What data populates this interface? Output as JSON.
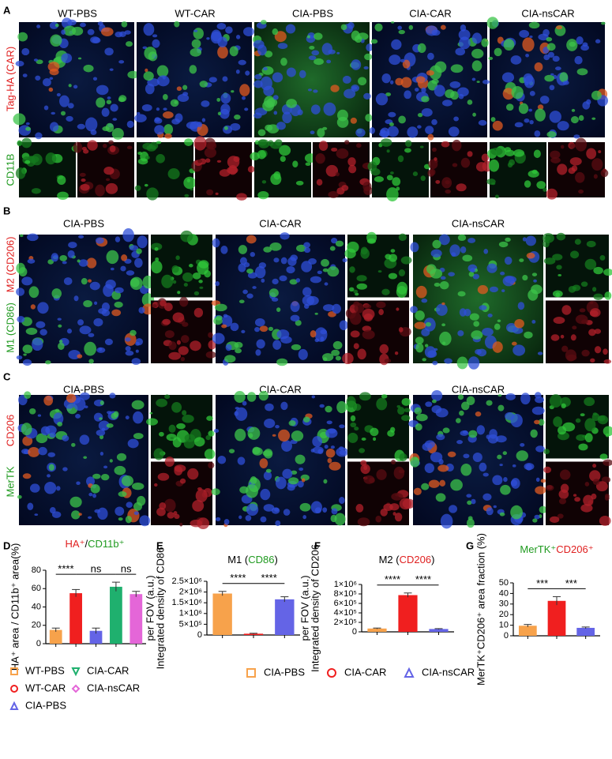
{
  "panels": [
    {
      "letter": "A",
      "columns": [
        "WT-PBS",
        "WT-CAR",
        "CIA-PBS",
        "CIA-CAR",
        "CIA-nsCAR"
      ],
      "channels": [
        {
          "text": "Tag-HA (CAR)",
          "color": "#e02020"
        },
        {
          "text": "CD11B",
          "color": "#1f9a1f"
        }
      ]
    },
    {
      "letter": "B",
      "columns": [
        "CIA-PBS",
        "CIA-CAR",
        "CIA-nsCAR"
      ],
      "channels": [
        {
          "text": "M2 (CD206)",
          "color": "#e02020"
        },
        {
          "text": "M1 (CD86)",
          "color": "#1f9a1f"
        }
      ]
    },
    {
      "letter": "C",
      "columns": [
        "CIA-PBS",
        "CIA-CAR",
        "CIA-nsCAR"
      ],
      "channels": [
        {
          "text": "CD206",
          "color": "#e02020"
        },
        {
          "text": "MerTK",
          "color": "#1f9a1f"
        }
      ]
    }
  ],
  "chart_data": [
    {
      "type": "bar",
      "letter": "D",
      "title_parts": [
        {
          "text": "HA⁺",
          "color": "#e02020"
        },
        {
          "text": "/",
          "color": "#000000"
        },
        {
          "text": "CD11b⁺",
          "color": "#1f9a1f"
        }
      ],
      "ylabel": [
        "HA⁺ area / CD11b⁺ area(%)"
      ],
      "categories": [
        "WT-PBS",
        "WT-CAR",
        "CIA-PBS",
        "CIA-CAR",
        "CIA-nsCAR"
      ],
      "values": [
        15,
        55,
        14,
        62,
        54
      ],
      "errors": [
        2,
        4,
        3,
        5,
        3
      ],
      "colors": [
        "#f7a24b",
        "#f01f1f",
        "#6464e6",
        "#1fb06e",
        "#e466d8"
      ],
      "markers": [
        "square",
        "circle",
        "triangle",
        "triangle-down",
        "diamond"
      ],
      "ylim": [
        0,
        80
      ],
      "yticks": [
        0,
        20,
        40,
        60,
        80
      ],
      "significance": [
        {
          "from": "WT-PBS",
          "to": "WT-CAR",
          "label": "****"
        },
        {
          "from": "WT-CAR",
          "to": "CIA-CAR",
          "label": "ns"
        },
        {
          "from": "CIA-CAR",
          "to": "CIA-nsCAR",
          "label": "ns"
        }
      ],
      "legend": "below-two-columns"
    },
    {
      "type": "bar",
      "letter": "E",
      "title_parts": [
        {
          "text": "M1 (",
          "color": "#000000"
        },
        {
          "text": "CD86",
          "color": "#1f9a1f"
        },
        {
          "text": ")",
          "color": "#000000"
        }
      ],
      "ylabel": [
        "Integrated density of CD86",
        "per FOV (a.u.)"
      ],
      "categories": [
        "CIA-PBS",
        "CIA-CAR",
        "CIA-nsCAR"
      ],
      "values": [
        1930000,
        60000,
        1660000
      ],
      "errors": [
        100000,
        20000,
        120000
      ],
      "colors": [
        "#f7a24b",
        "#f01f1f",
        "#6464e6"
      ],
      "markers": [
        "square",
        "circle",
        "triangle"
      ],
      "ylim": [
        0,
        2500000
      ],
      "yticks": [
        0,
        {
          "value": 500000,
          "label": "5×10⁵"
        },
        {
          "value": 1000000,
          "label": "1×10⁶"
        },
        {
          "value": 1500000,
          "label": "1.5×10⁶"
        },
        {
          "value": 2000000,
          "label": "2×10⁶"
        },
        {
          "value": 2500000,
          "label": "2.5×10⁶"
        }
      ],
      "significance": [
        {
          "from": "CIA-PBS",
          "to": "CIA-CAR",
          "label": "****"
        },
        {
          "from": "CIA-CAR",
          "to": "CIA-nsCAR",
          "label": "****"
        }
      ],
      "legend": "below-row"
    },
    {
      "type": "bar",
      "letter": "F",
      "title_parts": [
        {
          "text": "M2 (",
          "color": "#000000"
        },
        {
          "text": "CD206",
          "color": "#e02020"
        },
        {
          "text": ")",
          "color": "#000000"
        }
      ],
      "ylabel": [
        "Integrated density of CD206",
        "per FOV (a.u.)"
      ],
      "categories": [
        "CIA-PBS",
        "CIA-CAR",
        "CIA-nsCAR"
      ],
      "values": [
        70000,
        775000,
        60000
      ],
      "errors": [
        10000,
        45000,
        8000
      ],
      "colors": [
        "#f7a24b",
        "#f01f1f",
        "#6464e6"
      ],
      "ylim": [
        0,
        1000000
      ],
      "yticks": [
        0,
        {
          "value": 200000,
          "label": "2×10⁵"
        },
        {
          "value": 400000,
          "label": "4×10⁵"
        },
        {
          "value": 600000,
          "label": "6×10⁵"
        },
        {
          "value": 800000,
          "label": "8×10⁵"
        },
        {
          "value": 1000000,
          "label": "1×10⁶"
        }
      ],
      "significance": [
        {
          "from": "CIA-PBS",
          "to": "CIA-CAR",
          "label": "****"
        },
        {
          "from": "CIA-CAR",
          "to": "CIA-nsCAR",
          "label": "****"
        }
      ]
    },
    {
      "type": "bar",
      "letter": "G",
      "title_parts": [
        {
          "text": "MerTK⁺",
          "color": "#1f9a1f"
        },
        {
          "text": "CD206⁺",
          "color": "#e02020"
        }
      ],
      "ylabel": [
        "MerTK⁺CD206⁺ area fraction (%)"
      ],
      "categories": [
        "CIA-PBS",
        "CIA-CAR",
        "CIA-nsCAR"
      ],
      "values": [
        9.5,
        33,
        7.5
      ],
      "errors": [
        1.2,
        4,
        0.8
      ],
      "colors": [
        "#f7a24b",
        "#f01f1f",
        "#6464e6"
      ],
      "ylim": [
        0,
        50
      ],
      "yticks": [
        0,
        10,
        20,
        30,
        40,
        50
      ],
      "significance": [
        {
          "from": "CIA-PBS",
          "to": "CIA-CAR",
          "label": "***"
        },
        {
          "from": "CIA-CAR",
          "to": "CIA-nsCAR",
          "label": "***"
        }
      ]
    }
  ]
}
